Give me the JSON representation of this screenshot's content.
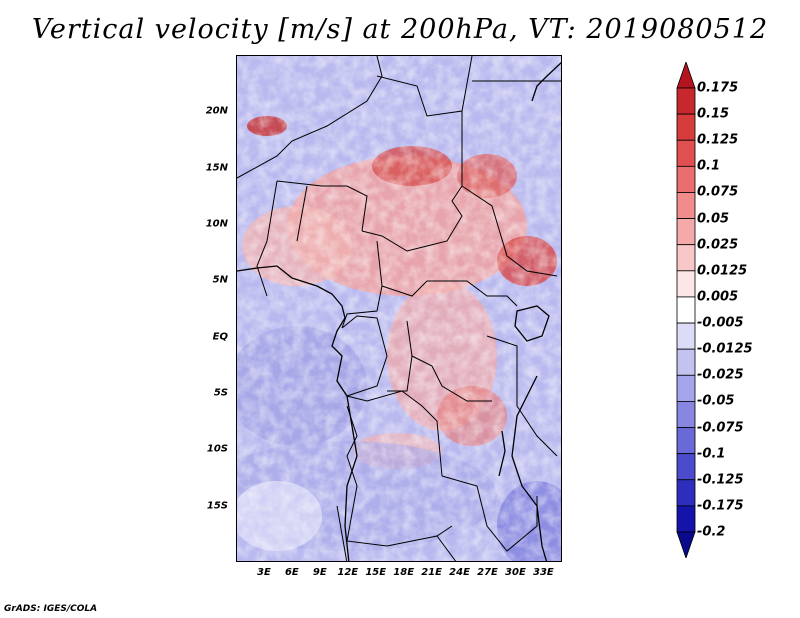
{
  "title": "Vertical velocity [m/s] at 200hPa, VT: 2019080512",
  "map": {
    "lat_labels": [
      "20N",
      "15N",
      "10N",
      "5N",
      "EQ",
      "5S",
      "10S",
      "15S"
    ],
    "lat_values": [
      20,
      15,
      10,
      5,
      0,
      -5,
      -10,
      -15
    ],
    "lon_labels": [
      "3E",
      "6E",
      "9E",
      "12E",
      "15E",
      "18E",
      "21E",
      "24E",
      "27E",
      "30E",
      "33E"
    ],
    "lon_values": [
      3,
      6,
      9,
      12,
      15,
      18,
      21,
      24,
      27,
      30,
      33
    ],
    "extent": {
      "lon_min": 0,
      "lon_max": 35,
      "lat_min": -20,
      "lat_max": 25
    },
    "field_summary": "Positive (upward, red) values concentrated north of the equator in the Sahel and central Africa; negative (downward, blue) values dominate the southern part of the domain and the Atlantic."
  },
  "colorbar": {
    "levels": [
      "0.175",
      "0.15",
      "0.125",
      "0.1",
      "0.075",
      "0.05",
      "0.025",
      "0.0125",
      "0.005",
      "-0.005",
      "-0.0125",
      "-0.025",
      "-0.05",
      "-0.075",
      "-0.1",
      "-0.125",
      "-0.175",
      "-0.2"
    ],
    "colors": [
      "#b4141e",
      "#c8282d",
      "#d73c3c",
      "#e15050",
      "#eb6e6e",
      "#f08c8c",
      "#f5aaaa",
      "#f8c8c8",
      "#fce6e6",
      "#ffffff",
      "#dcdcf8",
      "#c3c3f0",
      "#a5a5eb",
      "#8787e1",
      "#6969d7",
      "#4b4bcd",
      "#2d2dbe",
      "#1414aa",
      "#0a0a8c"
    ]
  },
  "footer": "GrADS: IGES/COLA"
}
